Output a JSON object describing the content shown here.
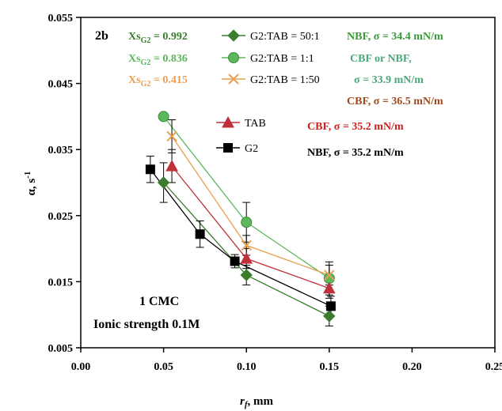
{
  "chart_data": {
    "type": "scatter",
    "panel_label": "2b",
    "xlabel": "r",
    "xlabel_sub": "f",
    "xlabel_unit": ", mm",
    "ylabel": "α, s",
    "ylabel_exp": "-1",
    "xlim": [
      0.0,
      0.25
    ],
    "ylim": [
      0.005,
      0.055
    ],
    "x_ticks": [
      "0.00",
      "0.05",
      "0.10",
      "0.15",
      "0.20",
      "0.25"
    ],
    "y_ticks": [
      "0.005",
      "0.015",
      "0.025",
      "0.035",
      "0.045",
      "0.055"
    ],
    "legend_placement": "top-center",
    "series": [
      {
        "name": "G2:TAB = 50:1",
        "xs_main": "Xs",
        "xs_sub": "G2",
        "xs_value": " = 0.992",
        "color": "#3a7d2c",
        "marker": "diamond",
        "x": [
          0.05,
          0.1,
          0.15
        ],
        "y": [
          0.03,
          0.016,
          0.0098
        ],
        "err": [
          0.003,
          0.0015,
          0.0015
        ]
      },
      {
        "name": "G2:TAB = 1:1",
        "xs_main": "Xs",
        "xs_sub": "G2",
        "xs_value": " = 0.836",
        "color": "#5cb85c",
        "marker": "circle",
        "x": [
          0.05,
          0.1,
          0.15
        ],
        "y": [
          0.04,
          0.024,
          0.0155
        ],
        "err": [
          0.0,
          0.003,
          0.0025
        ]
      },
      {
        "name": "G2:TAB = 1:50",
        "xs_main": "Xs",
        "xs_sub": "G2",
        "xs_value": " = 0.415",
        "color": "#e8a050",
        "marker": "cross",
        "x": [
          0.055,
          0.1,
          0.15
        ],
        "y": [
          0.037,
          0.0205,
          0.016
        ],
        "err": [
          0.0025,
          0.0015,
          0.0015
        ]
      },
      {
        "name": "TAB",
        "color": "#c0303a",
        "marker": "triangle",
        "x": [
          0.055,
          0.1,
          0.15
        ],
        "y": [
          0.0325,
          0.0185,
          0.014
        ],
        "err": [
          0.0025,
          0.0015,
          0.0015
        ]
      },
      {
        "name": "G2",
        "color": "#000000",
        "marker": "square",
        "x": [
          0.042,
          0.072,
          0.093,
          0.151
        ],
        "y": [
          0.032,
          0.0222,
          0.0181,
          0.0113
        ],
        "err": [
          0.002,
          0.002,
          0.001,
          0.0015
        ]
      }
    ],
    "annotations": [
      {
        "text": "NBF, σ = 34.4 mN/m",
        "color": "#3a9a3a"
      },
      {
        "text": "CBF or NBF,",
        "color": "#4aa87a"
      },
      {
        "text": "σ = 33.9 mN/m",
        "color": "#4aa87a"
      },
      {
        "text": "CBF, σ = 36.5 mN/m",
        "color": "#a04a20"
      },
      {
        "text": "CBF, σ = 35.2 mN/m",
        "color": "#d02020"
      },
      {
        "text": "NBF, σ = 35.2 mN/m",
        "color": "#000000"
      }
    ],
    "inplot_text": [
      "1 CMC",
      "Ionic strength 0.1M"
    ]
  }
}
